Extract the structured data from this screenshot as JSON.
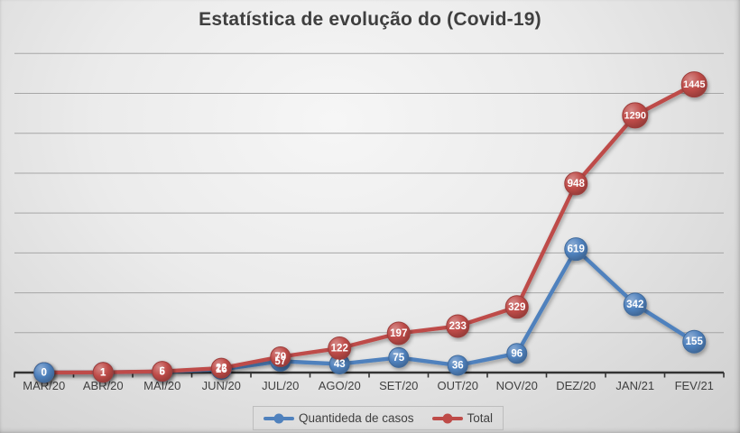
{
  "chart_data": {
    "type": "line",
    "title": "Estatística de evolução do (Covid-19)",
    "categories": [
      "MAR/20",
      "ABR/20",
      "MAI/20",
      "JUN/20",
      "JUL/20",
      "AGO/20",
      "SET/20",
      "OUT/20",
      "NOV/20",
      "DEZ/20",
      "JAN/21",
      "FEV/21"
    ],
    "series": [
      {
        "name": "Quantideda de casos",
        "color": "#4f81bd",
        "values": [
          0,
          1,
          5,
          16,
          57,
          43,
          75,
          36,
          96,
          619,
          342,
          155
        ]
      },
      {
        "name": "Total",
        "color": "#be4b48",
        "values": [
          0,
          1,
          6,
          22,
          79,
          122,
          197,
          233,
          329,
          948,
          1290,
          1445
        ]
      }
    ],
    "ylim": [
      0,
      1600
    ],
    "grid_step": 200,
    "grid": true,
    "y_axis_labels_visible": false,
    "data_labels": true,
    "data_label_position": "center",
    "legend_position": "bottom"
  },
  "colors": {
    "data_label_text": "#ffffff",
    "gridline": "#a6a6a6",
    "axis_line": "#333333",
    "title_text": "#3f3f3f",
    "x_axis_label_text": "#404040",
    "legend_border": "#bdbdbd",
    "background_center": "#f6f6f6",
    "background_edge": "#cfcfcf"
  }
}
